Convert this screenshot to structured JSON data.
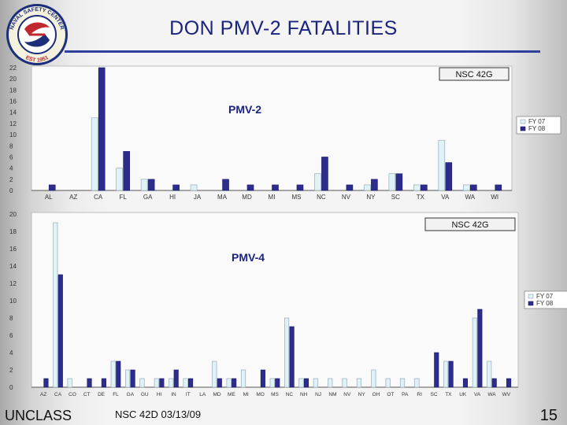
{
  "slide": {
    "title": "DON PMV-2 FATALITIES",
    "footer_left": "UNCLASS",
    "footer_center": "NSC 42D 03/13/09",
    "page_number": "15"
  },
  "logo": {
    "text_top": "NAVAL SAFETY CENTER",
    "text_bottom": "EST 1951"
  },
  "colors": {
    "fy07": "#dff3f6",
    "fy08": "#2c2c8c",
    "bar_edge": "#8aa0b0",
    "title": "#1a237e",
    "rule": "#2f3f9e"
  },
  "chart_data": [
    {
      "type": "bar",
      "title": "PMV-2",
      "annotation": "NSC 42G",
      "categories": [
        "AL",
        "AZ",
        "CA",
        "FL",
        "GA",
        "HI",
        "JA",
        "MA",
        "MD",
        "MI",
        "MS",
        "NC",
        "NV",
        "NY",
        "SC",
        "TX",
        "VA",
        "WA",
        "WI"
      ],
      "series": [
        {
          "name": "FY 07",
          "values": [
            0,
            0,
            13,
            4,
            2,
            0,
            1,
            0,
            0,
            0,
            0,
            3,
            0,
            1,
            3,
            1,
            9,
            1,
            0
          ]
        },
        {
          "name": "FY 08",
          "values": [
            1,
            0,
            22,
            7,
            2,
            1,
            0,
            2,
            1,
            1,
            1,
            6,
            1,
            2,
            3,
            1,
            5,
            1,
            1
          ]
        }
      ],
      "y_ticks": [
        0,
        2,
        4,
        6,
        8,
        10,
        12,
        14,
        16,
        18,
        20,
        22
      ],
      "ylim": [
        0,
        22
      ],
      "legend_position": "right",
      "grid": false
    },
    {
      "type": "bar",
      "title": "PMV-4",
      "annotation": "NSC 42G",
      "categories": [
        "AZ",
        "CA",
        "CO",
        "CT",
        "DE",
        "FL",
        "GA",
        "GU",
        "HI",
        "IN",
        "IT",
        "LA",
        "MD",
        "ME",
        "MI",
        "MO",
        "MS",
        "NC",
        "NH",
        "NJ",
        "NM",
        "NV",
        "NY",
        "OH",
        "OT",
        "PA",
        "RI",
        "SC",
        "TX",
        "UK",
        "VA",
        "WA",
        "WV"
      ],
      "series": [
        {
          "name": "FY 07",
          "values": [
            0,
            19,
            1,
            0,
            0,
            3,
            2,
            1,
            1,
            1,
            1,
            0,
            3,
            1,
            2,
            0,
            1,
            8,
            1,
            1,
            1,
            1,
            1,
            2,
            1,
            1,
            1,
            0,
            3,
            0,
            8,
            3,
            0
          ]
        },
        {
          "name": "FY 08",
          "values": [
            1,
            13,
            0,
            1,
            1,
            3,
            2,
            0,
            1,
            2,
            1,
            0,
            1,
            1,
            0,
            2,
            1,
            7,
            1,
            0,
            0,
            0,
            0,
            0,
            0,
            0,
            0,
            4,
            3,
            1,
            9,
            1,
            1
          ]
        }
      ],
      "y_ticks": [
        0,
        2,
        4,
        6,
        8,
        10,
        12,
        14,
        16,
        18,
        20
      ],
      "ylim": [
        0,
        20
      ],
      "legend_position": "right",
      "grid": false
    }
  ]
}
